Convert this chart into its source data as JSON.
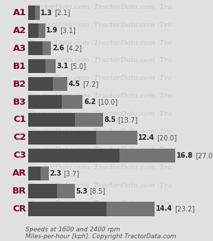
{
  "categories": [
    "A1",
    "A2",
    "A3",
    "B1",
    "B2",
    "B3",
    "C1",
    "C2",
    "C3",
    "AR",
    "BR",
    "CR"
  ],
  "speed_low": [
    1.3,
    1.9,
    2.6,
    3.1,
    4.5,
    6.2,
    8.5,
    12.4,
    16.8,
    2.3,
    5.3,
    14.4
  ],
  "speed_high": [
    2.1,
    3.1,
    4.2,
    5.0,
    7.2,
    10.0,
    13.7,
    20.0,
    27.0,
    3.7,
    8.5,
    23.2
  ],
  "max_val": 27.0,
  "color_dark": "#4a4a4a",
  "color_medium": "#757575",
  "label_color_bold": "#222222",
  "label_color_bracket": "#555555",
  "label_category": "#7a0026",
  "bg_color": "#e0e0e0",
  "watermark_color": "#c8c8c8",
  "footnote": "Speeds at 1600 and 2400 rpm\nMiles-per-hour [kph]. Copyright TractorData.com",
  "footnote_fontsize": 6.5,
  "cat_fontsize": 9.5,
  "val_fontsize": 7.0
}
